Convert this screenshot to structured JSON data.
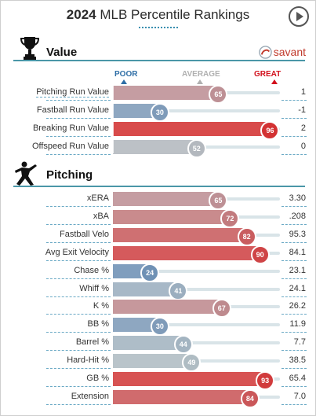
{
  "header": {
    "year": "2024",
    "title": "MLB Percentile Rankings"
  },
  "icons": {
    "play": "play-button-icon",
    "trophy": "trophy-icon",
    "pitcher": "pitcher-silhouette-icon",
    "savant_logo": "savant-logo-icon"
  },
  "brand": {
    "label": "savant"
  },
  "scale": {
    "poor": "POOR",
    "average": "AVERAGE",
    "great": "GREAT",
    "poor_color": "#2e6ea6",
    "average_color": "#b0b0b0",
    "great_color": "#d2111d"
  },
  "sections": [
    {
      "title": "Value",
      "rows": [
        {
          "label": "Pitching Run Value",
          "percentile": "65",
          "value": "1"
        },
        {
          "label": "Fastball Run Value",
          "percentile": "30",
          "value": "-1"
        },
        {
          "label": "Breaking Run Value",
          "percentile": "96",
          "value": "2"
        },
        {
          "label": "Offspeed Run Value",
          "percentile": "52",
          "value": "0"
        }
      ]
    },
    {
      "title": "Pitching",
      "rows": [
        {
          "label": "xERA",
          "percentile": "65",
          "value": "3.30"
        },
        {
          "label": "xBA",
          "percentile": "72",
          "value": ".208"
        },
        {
          "label": "Fastball Velo",
          "percentile": "82",
          "value": "95.3"
        },
        {
          "label": "Avg Exit Velocity",
          "percentile": "90",
          "value": "84.1"
        },
        {
          "label": "Chase %",
          "percentile": "24",
          "value": "23.1"
        },
        {
          "label": "Whiff %",
          "percentile": "41",
          "value": "24.1"
        },
        {
          "label": "K %",
          "percentile": "67",
          "value": "26.2"
        },
        {
          "label": "BB %",
          "percentile": "30",
          "value": "11.9"
        },
        {
          "label": "Barrel %",
          "percentile": "44",
          "value": "7.7"
        },
        {
          "label": "Hard-Hit %",
          "percentile": "49",
          "value": "38.5"
        },
        {
          "label": "GB %",
          "percentile": "93",
          "value": "65.4"
        },
        {
          "label": "Extension",
          "percentile": "84",
          "value": "7.0"
        }
      ]
    }
  ]
}
